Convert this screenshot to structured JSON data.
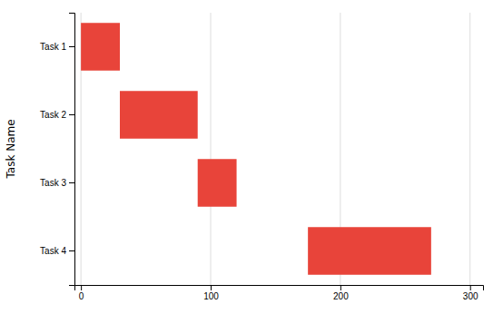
{
  "chart_data": {
    "type": "bar",
    "orientation": "horizontal",
    "categories": [
      "Task 1",
      "Task 2",
      "Task 3",
      "Task 4"
    ],
    "starts": [
      0,
      30,
      90,
      175
    ],
    "values": [
      30,
      60,
      30,
      95
    ],
    "color": "#E8443A",
    "ylabel": "Task Name",
    "xlim": [
      -5,
      310
    ],
    "xticks": [
      0,
      100,
      200,
      300
    ],
    "grid": true
  }
}
